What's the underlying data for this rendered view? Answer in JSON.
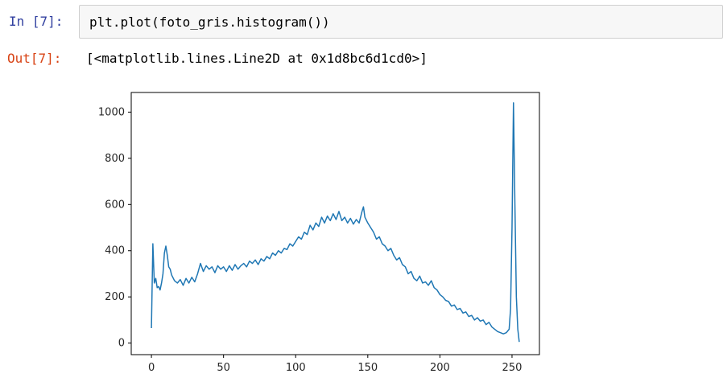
{
  "cell": {
    "in_prompt": "In [7]:",
    "code": "plt.plot(foto_gris.histogram())",
    "out_prompt": "Out[7]:",
    "output_text": "[<matplotlib.lines.Line2D at 0x1d8bc6d1cd0>]"
  },
  "chart_data": {
    "type": "line",
    "title": "",
    "xlabel": "",
    "ylabel": "",
    "xlim": [
      -14,
      269
    ],
    "ylim": [
      -50,
      1085
    ],
    "xticks": [
      0,
      50,
      100,
      150,
      200,
      250
    ],
    "yticks": [
      0,
      200,
      400,
      600,
      800,
      1000
    ],
    "grid": false,
    "line_color": "#1f77b4",
    "series": [
      {
        "values": [
          [
            0,
            65
          ],
          [
            1,
            430
          ],
          [
            2,
            260
          ],
          [
            3,
            280
          ],
          [
            4,
            240
          ],
          [
            5,
            245
          ],
          [
            6,
            230
          ],
          [
            7,
            260
          ],
          [
            8,
            300
          ],
          [
            9,
            390
          ],
          [
            10,
            420
          ],
          [
            11,
            380
          ],
          [
            12,
            330
          ],
          [
            13,
            320
          ],
          [
            14,
            295
          ],
          [
            16,
            270
          ],
          [
            18,
            260
          ],
          [
            20,
            275
          ],
          [
            22,
            250
          ],
          [
            24,
            280
          ],
          [
            26,
            260
          ],
          [
            28,
            285
          ],
          [
            30,
            265
          ],
          [
            32,
            300
          ],
          [
            34,
            345
          ],
          [
            36,
            310
          ],
          [
            38,
            335
          ],
          [
            40,
            320
          ],
          [
            42,
            330
          ],
          [
            44,
            305
          ],
          [
            46,
            335
          ],
          [
            48,
            320
          ],
          [
            50,
            330
          ],
          [
            52,
            310
          ],
          [
            54,
            335
          ],
          [
            56,
            315
          ],
          [
            58,
            340
          ],
          [
            60,
            320
          ],
          [
            62,
            335
          ],
          [
            64,
            345
          ],
          [
            66,
            330
          ],
          [
            68,
            355
          ],
          [
            70,
            345
          ],
          [
            72,
            360
          ],
          [
            74,
            340
          ],
          [
            76,
            365
          ],
          [
            78,
            355
          ],
          [
            80,
            375
          ],
          [
            82,
            365
          ],
          [
            84,
            390
          ],
          [
            86,
            380
          ],
          [
            88,
            400
          ],
          [
            90,
            390
          ],
          [
            92,
            410
          ],
          [
            94,
            405
          ],
          [
            96,
            430
          ],
          [
            98,
            420
          ],
          [
            100,
            440
          ],
          [
            102,
            460
          ],
          [
            104,
            450
          ],
          [
            106,
            480
          ],
          [
            108,
            470
          ],
          [
            110,
            510
          ],
          [
            112,
            490
          ],
          [
            114,
            520
          ],
          [
            116,
            505
          ],
          [
            118,
            545
          ],
          [
            120,
            520
          ],
          [
            122,
            550
          ],
          [
            124,
            530
          ],
          [
            126,
            560
          ],
          [
            128,
            535
          ],
          [
            130,
            570
          ],
          [
            132,
            530
          ],
          [
            134,
            545
          ],
          [
            136,
            520
          ],
          [
            138,
            540
          ],
          [
            140,
            515
          ],
          [
            142,
            535
          ],
          [
            144,
            520
          ],
          [
            146,
            570
          ],
          [
            147,
            590
          ],
          [
            148,
            545
          ],
          [
            150,
            520
          ],
          [
            152,
            500
          ],
          [
            154,
            480
          ],
          [
            156,
            450
          ],
          [
            158,
            460
          ],
          [
            160,
            430
          ],
          [
            162,
            420
          ],
          [
            164,
            400
          ],
          [
            166,
            410
          ],
          [
            168,
            380
          ],
          [
            170,
            360
          ],
          [
            172,
            370
          ],
          [
            174,
            340
          ],
          [
            176,
            330
          ],
          [
            178,
            300
          ],
          [
            180,
            310
          ],
          [
            182,
            280
          ],
          [
            184,
            270
          ],
          [
            186,
            290
          ],
          [
            188,
            260
          ],
          [
            190,
            265
          ],
          [
            192,
            250
          ],
          [
            194,
            270
          ],
          [
            196,
            240
          ],
          [
            198,
            230
          ],
          [
            200,
            210
          ],
          [
            202,
            200
          ],
          [
            204,
            185
          ],
          [
            206,
            180
          ],
          [
            208,
            160
          ],
          [
            210,
            165
          ],
          [
            212,
            145
          ],
          [
            214,
            150
          ],
          [
            216,
            130
          ],
          [
            218,
            135
          ],
          [
            220,
            115
          ],
          [
            222,
            120
          ],
          [
            224,
            100
          ],
          [
            226,
            110
          ],
          [
            228,
            95
          ],
          [
            230,
            100
          ],
          [
            232,
            80
          ],
          [
            234,
            90
          ],
          [
            236,
            70
          ],
          [
            238,
            60
          ],
          [
            240,
            50
          ],
          [
            242,
            45
          ],
          [
            244,
            40
          ],
          [
            246,
            45
          ],
          [
            248,
            60
          ],
          [
            249,
            150
          ],
          [
            250,
            500
          ],
          [
            251,
            1040
          ],
          [
            252,
            600
          ],
          [
            253,
            200
          ],
          [
            254,
            60
          ],
          [
            255,
            5
          ]
        ]
      }
    ]
  }
}
